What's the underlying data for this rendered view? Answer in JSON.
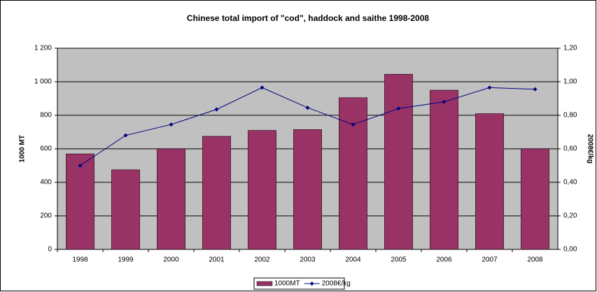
{
  "chart_data": {
    "type": "bar_line",
    "title": "Chinese total import of \"cod\", haddock and saithe 1998-2008",
    "categories": [
      "1998",
      "1999",
      "2000",
      "2001",
      "2002",
      "2003",
      "2004",
      "2005",
      "2006",
      "2007",
      "2008"
    ],
    "series": [
      {
        "name": "1000MT",
        "type": "bar",
        "color": "#993366",
        "axis": "y",
        "values": [
          570,
          475,
          600,
          675,
          710,
          715,
          905,
          1045,
          950,
          810,
          600
        ]
      },
      {
        "name": "2008€/kg",
        "type": "line",
        "color": "#000080",
        "axis": "y2",
        "values": [
          0.5,
          0.68,
          0.745,
          0.835,
          0.965,
          0.845,
          0.745,
          0.84,
          0.88,
          0.965,
          0.955
        ]
      }
    ],
    "ylabel": "1000 MT",
    "y2label": "2008€/kg",
    "ylim": [
      0,
      1200
    ],
    "yticks": [
      0,
      200,
      400,
      600,
      800,
      {
        "value": 1000,
        "label": "1 000"
      },
      {
        "value": 1200,
        "label": "1 200"
      }
    ],
    "y2lim": [
      0,
      1.2
    ],
    "y2ticks": [
      {
        "value": 0,
        "label": "0,00"
      },
      {
        "value": 0.2,
        "label": "0,20"
      },
      {
        "value": 0.4,
        "label": "0,40"
      },
      {
        "value": 0.6,
        "label": "0,60"
      },
      {
        "value": 0.8,
        "label": "0,80"
      },
      {
        "value": 1.0,
        "label": "1,00"
      },
      {
        "value": 1.2,
        "label": "1,20"
      }
    ],
    "grid": true,
    "plot_background": "#c0c0c0",
    "legend": "bottom"
  }
}
